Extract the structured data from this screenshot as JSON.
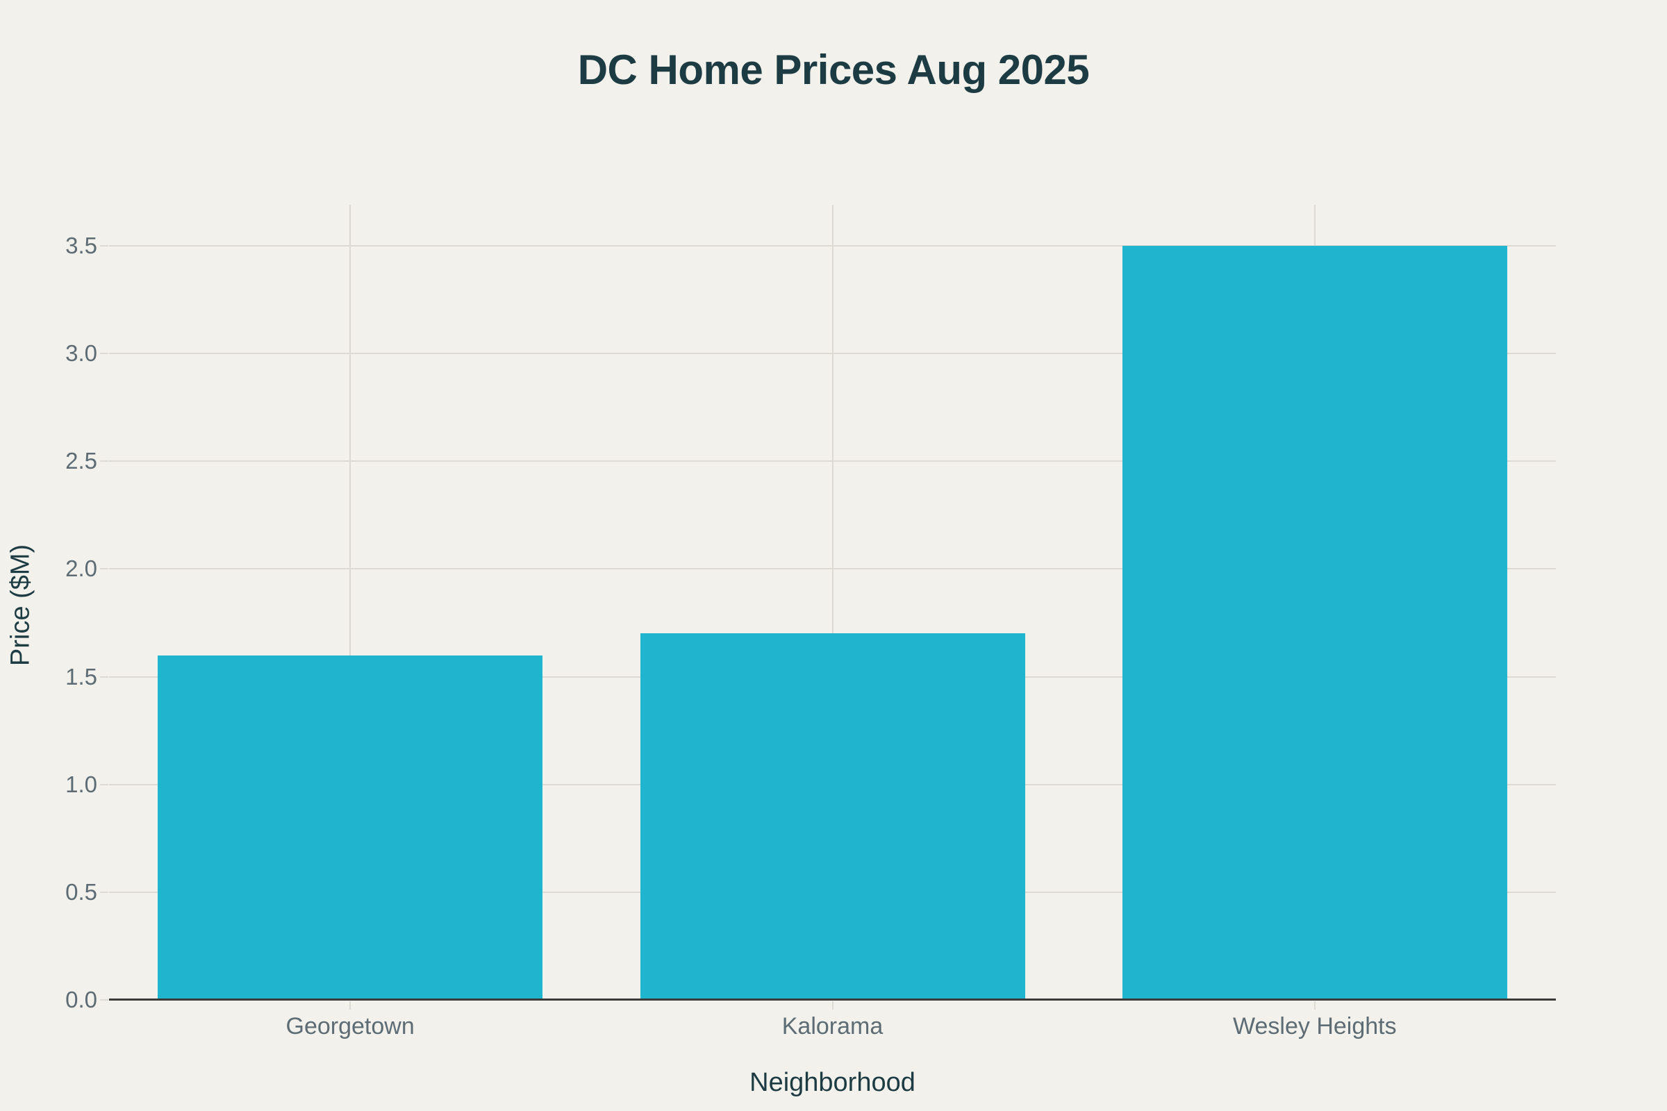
{
  "chart_data": {
    "type": "bar",
    "title": "DC Home Prices Aug 2025",
    "xlabel": "Neighborhood",
    "ylabel": "Price ($M)",
    "categories": [
      "Georgetown",
      "Kalorama",
      "Wesley Heights"
    ],
    "values": [
      1.6,
      1.7,
      3.5
    ],
    "yticks": [
      0.0,
      0.5,
      1.0,
      1.5,
      2.0,
      2.5,
      3.0,
      3.5
    ],
    "ylim": [
      0,
      3.69
    ],
    "grid": true,
    "legend": false,
    "colors": {
      "bar": "#20B5CE",
      "background": "#F2F1EB",
      "title_text": "#1D3B43",
      "tick_text": "#5D6C74",
      "gridline": "#DCDAD3",
      "axis_line": "#3B3B39"
    }
  }
}
